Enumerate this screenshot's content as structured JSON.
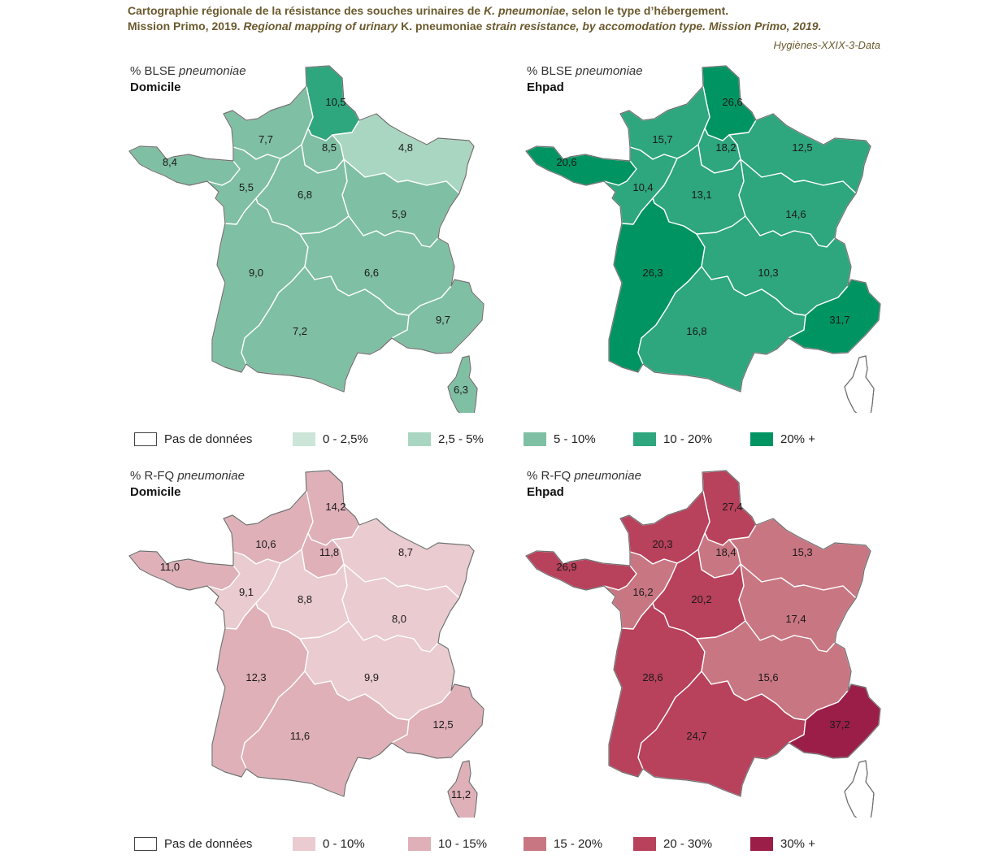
{
  "header": {
    "line1_a": "Cartographie régionale de la résistance des souches urinaires de ",
    "line1_b": "K. pneumoniae",
    "line1_c": ", selon le type d’hébergement.",
    "line2_a": "Mission Primo, 2019. ",
    "line2_b": "Regional mapping of urinary",
    "line2_c": " K. pneumoniae ",
    "line2_d": "strain resistance, by accomodation type. Mission Primo, 2019.",
    "source": "Hygiènes-XXIX-3-Data"
  },
  "panels": [
    {
      "metric": "% BLSE",
      "organism": "pneumoniae",
      "setting": "Domicile",
      "values": {
        "HDF": "10,5",
        "NOR": "7,7",
        "IDF": "8,5",
        "GE": "4,8",
        "BRE": "8,4",
        "PDL": "5,5",
        "CVL": "6,8",
        "BFC": "5,9",
        "NAQ": "9,0",
        "ARA": "6,6",
        "OCC": "7,2",
        "PACA": "9,7",
        "COR": "6,3"
      },
      "levels": {
        "HDF": 3,
        "NOR": 2,
        "IDF": 2,
        "GE": 1,
        "BRE": 2,
        "PDL": 2,
        "CVL": 2,
        "BFC": 2,
        "NAQ": 2,
        "ARA": 2,
        "OCC": 2,
        "PACA": 2,
        "COR": 2
      }
    },
    {
      "metric": "% BLSE",
      "organism": "pneumoniae",
      "setting": "Ehpad",
      "values": {
        "HDF": "26,6",
        "NOR": "15,7",
        "IDF": "18,2",
        "GE": "12,5",
        "BRE": "20,6",
        "PDL": "10,4",
        "CVL": "13,1",
        "BFC": "14,6",
        "NAQ": "26,3",
        "ARA": "10,3",
        "OCC": "16,8",
        "PACA": "31,7",
        "COR": ""
      },
      "levels": {
        "HDF": 4,
        "NOR": 3,
        "IDF": 3,
        "GE": 3,
        "BRE": 4,
        "PDL": 3,
        "CVL": 3,
        "BFC": 3,
        "NAQ": 4,
        "ARA": 3,
        "OCC": 3,
        "PACA": 4,
        "COR": -1
      }
    },
    {
      "metric": "% R-FQ",
      "organism": "pneumoniae",
      "setting": "Domicile",
      "values": {
        "HDF": "14,2",
        "NOR": "10,6",
        "IDF": "11,8",
        "GE": "8,7",
        "BRE": "11,0",
        "PDL": "9,1",
        "CVL": "8,8",
        "BFC": "8,0",
        "NAQ": "12,3",
        "ARA": "9,9",
        "OCC": "11,6",
        "PACA": "12,5",
        "COR": "11,2"
      },
      "levels": {
        "HDF": 1,
        "NOR": 1,
        "IDF": 1,
        "GE": 0,
        "BRE": 1,
        "PDL": 0,
        "CVL": 0,
        "BFC": 0,
        "NAQ": 1,
        "ARA": 0,
        "OCC": 1,
        "PACA": 1,
        "COR": 1
      }
    },
    {
      "metric": "% R-FQ",
      "organism": "pneumoniae",
      "setting": "Ehpad",
      "values": {
        "HDF": "27,4",
        "NOR": "20,3",
        "IDF": "18,4",
        "GE": "15,3",
        "BRE": "26,9",
        "PDL": "16,2",
        "CVL": "20,2",
        "BFC": "17,4",
        "NAQ": "28,6",
        "ARA": "15,6",
        "OCC": "24,7",
        "PACA": "37,2",
        "COR": ""
      },
      "levels": {
        "HDF": 3,
        "NOR": 3,
        "IDF": 2,
        "GE": 2,
        "BRE": 3,
        "PDL": 2,
        "CVL": 3,
        "BFC": 2,
        "NAQ": 3,
        "ARA": 2,
        "OCC": 3,
        "PACA": 4,
        "COR": -1
      }
    }
  ],
  "legends": [
    {
      "no_data": "Pas de données",
      "items": [
        {
          "label": "0 - 2,5%",
          "color": "#cbe6d8"
        },
        {
          "label": "2,5 - 5%",
          "color": "#a9d6c0"
        },
        {
          "label": "5 - 10%",
          "color": "#7fbfa3"
        },
        {
          "label": "10 - 20%",
          "color": "#2ea67e"
        },
        {
          "label": "20% +",
          "color": "#009462"
        }
      ]
    },
    {
      "no_data": "Pas de données",
      "items": [
        {
          "label": "0 - 10%",
          "color": "#eacbd0"
        },
        {
          "label": "10 - 15%",
          "color": "#dfb0b8"
        },
        {
          "label": "15 - 20%",
          "color": "#c97683"
        },
        {
          "label": "20 - 30%",
          "color": "#b8415c"
        },
        {
          "label": "30% +",
          "color": "#9a1e48"
        }
      ]
    }
  ]
}
